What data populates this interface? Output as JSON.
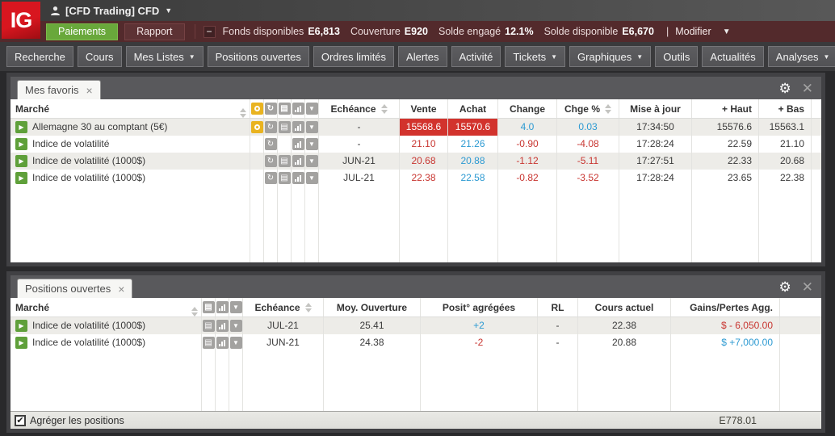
{
  "titlebar": {
    "logo": "IG",
    "account_label": "[CFD Trading] CFD"
  },
  "account_bar": {
    "paiements_button": "Paiements",
    "rapport_button": "Rapport",
    "stats": [
      {
        "label": "Fonds disponibles",
        "value": "E6,813"
      },
      {
        "label": "Couverture",
        "value": "E920"
      },
      {
        "label": "Solde engagé",
        "value": "12.1%"
      },
      {
        "label": "Solde disponible",
        "value": "E6,670"
      }
    ],
    "separator": "|",
    "modifier_label": "Modifier"
  },
  "nav": {
    "items": [
      {
        "label": "Recherche",
        "caret": false
      },
      {
        "label": "Cours",
        "caret": false
      },
      {
        "label": "Mes Listes",
        "caret": true
      },
      {
        "label": "Positions ouvertes",
        "caret": false
      },
      {
        "label": "Ordres limités",
        "caret": false
      },
      {
        "label": "Alertes",
        "caret": false
      },
      {
        "label": "Activité",
        "caret": false
      },
      {
        "label": "Tickets",
        "caret": true
      },
      {
        "label": "Graphiques",
        "caret": true
      },
      {
        "label": "Outils",
        "caret": false
      },
      {
        "label": "Actualités",
        "caret": false
      },
      {
        "label": "Analyses",
        "caret": true
      }
    ]
  },
  "favorites_panel": {
    "tab_label": "Mes favoris",
    "headers": {
      "marche": "Marché",
      "echeance": "Echéance",
      "vente": "Vente",
      "achat": "Achat",
      "change": "Change",
      "chge_pct": "Chge %",
      "mise_a_jour": "Mise à jour",
      "haut": "+ Haut",
      "bas": "+ Bas"
    },
    "header_icons": [
      "lightbulb",
      "refresh",
      "news",
      "chart",
      "dropdown"
    ],
    "rows": [
      {
        "market": "Allemagne 30 au comptant (5€)",
        "icons": [
          "lightbulb",
          "refresh",
          "news",
          "chart",
          "dropdown"
        ],
        "echeance": "-",
        "vente": "15568.6",
        "achat": "15570.6",
        "change": "4.0",
        "chge_pct": "0.03",
        "mise_a_jour": "17:34:50",
        "haut": "15576.6",
        "bas": "15563.1",
        "highlight": true,
        "change_color": "blue"
      },
      {
        "market": "Indice de volatilité",
        "icons": [
          "refresh",
          "chart",
          "dropdown"
        ],
        "echeance": "-",
        "vente": "21.10",
        "achat": "21.26",
        "change": "-0.90",
        "chge_pct": "-4.08",
        "mise_a_jour": "17:28:24",
        "haut": "22.59",
        "bas": "21.10",
        "highlight": false,
        "change_color": "red"
      },
      {
        "market": "Indice de volatilité (1000$)",
        "icons": [
          "refresh",
          "news",
          "chart",
          "dropdown"
        ],
        "echeance": "JUN-21",
        "vente": "20.68",
        "achat": "20.88",
        "change": "-1.12",
        "chge_pct": "-5.11",
        "mise_a_jour": "17:27:51",
        "haut": "22.33",
        "bas": "20.68",
        "highlight": false,
        "change_color": "red"
      },
      {
        "market": "Indice de volatilité (1000$)",
        "icons": [
          "refresh",
          "news",
          "chart",
          "dropdown"
        ],
        "echeance": "JUL-21",
        "vente": "22.38",
        "achat": "22.58",
        "change": "-0.82",
        "chge_pct": "-3.52",
        "mise_a_jour": "17:28:24",
        "haut": "23.65",
        "bas": "22.38",
        "highlight": false,
        "change_color": "red"
      }
    ]
  },
  "positions_panel": {
    "tab_label": "Positions ouvertes",
    "headers": {
      "marche": "Marché",
      "echeance": "Echéance",
      "moy_ouverture": "Moy. Ouverture",
      "posit_agregees": "Posit° agrégées",
      "rl": "RL",
      "cours_actuel": "Cours actuel",
      "gains_pertes": "Gains/Pertes Agg."
    },
    "header_icons": [
      "news",
      "chart",
      "dropdown"
    ],
    "rows": [
      {
        "market": "Indice de volatilité (1000$)",
        "icons": [
          "news",
          "chart",
          "dropdown"
        ],
        "echeance": "JUL-21",
        "moy_ouverture": "25.41",
        "posit_agregees": "+2",
        "posit_color": "blue",
        "rl": "-",
        "cours_actuel": "22.38",
        "gains_pertes": "$ - 6,050.00",
        "gains_color": "red"
      },
      {
        "market": "Indice de volatilité (1000$)",
        "icons": [
          "news",
          "chart",
          "dropdown"
        ],
        "echeance": "JUN-21",
        "moy_ouverture": "24.38",
        "posit_agregees": "-2",
        "posit_color": "red",
        "rl": "-",
        "cours_actuel": "20.88",
        "gains_pertes": "$ +7,000.00",
        "gains_color": "blue"
      }
    ],
    "footer": {
      "aggregate_label": "Agréger les positions",
      "checked": true,
      "total": "E778.01"
    }
  },
  "colors": {
    "highlight_red": "#d2332d",
    "text_red": "#c83530",
    "text_blue": "#2d9ad2",
    "green": "#69a83b"
  }
}
